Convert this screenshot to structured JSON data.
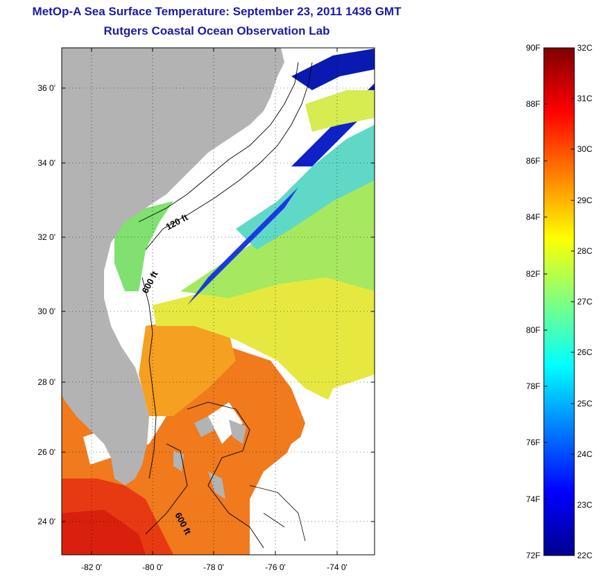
{
  "header": {
    "title": "MetOp-A Sea Surface Temperature:  September 23, 2011 1436 GMT",
    "subtitle": "Rutgers Coastal Ocean Observation Lab"
  },
  "map": {
    "lat_ticks": [
      "36 0'",
      "34 0'",
      "32 0'",
      "30 0'",
      "28 0'",
      "26 0'",
      "24 0'"
    ],
    "lon_ticks": [
      "-82 0'",
      "-80 0'",
      "-78 0'",
      "-76 0'",
      "-74 0'"
    ],
    "contour_labels": [
      "120 ft",
      "600 ft",
      "600 ft"
    ],
    "land_color": "#b3b3b3",
    "cloud_color": "#ffffff"
  },
  "colorbar": {
    "f_labels": [
      "90F",
      "88F",
      "86F",
      "84F",
      "82F",
      "80F",
      "78F",
      "76F",
      "74F",
      "72F"
    ],
    "c_labels": [
      "32C",
      "31C",
      "30C",
      "29C",
      "28C",
      "27C",
      "26C",
      "25C",
      "24C",
      "23C",
      "22C"
    ],
    "colormap": "jet"
  }
}
